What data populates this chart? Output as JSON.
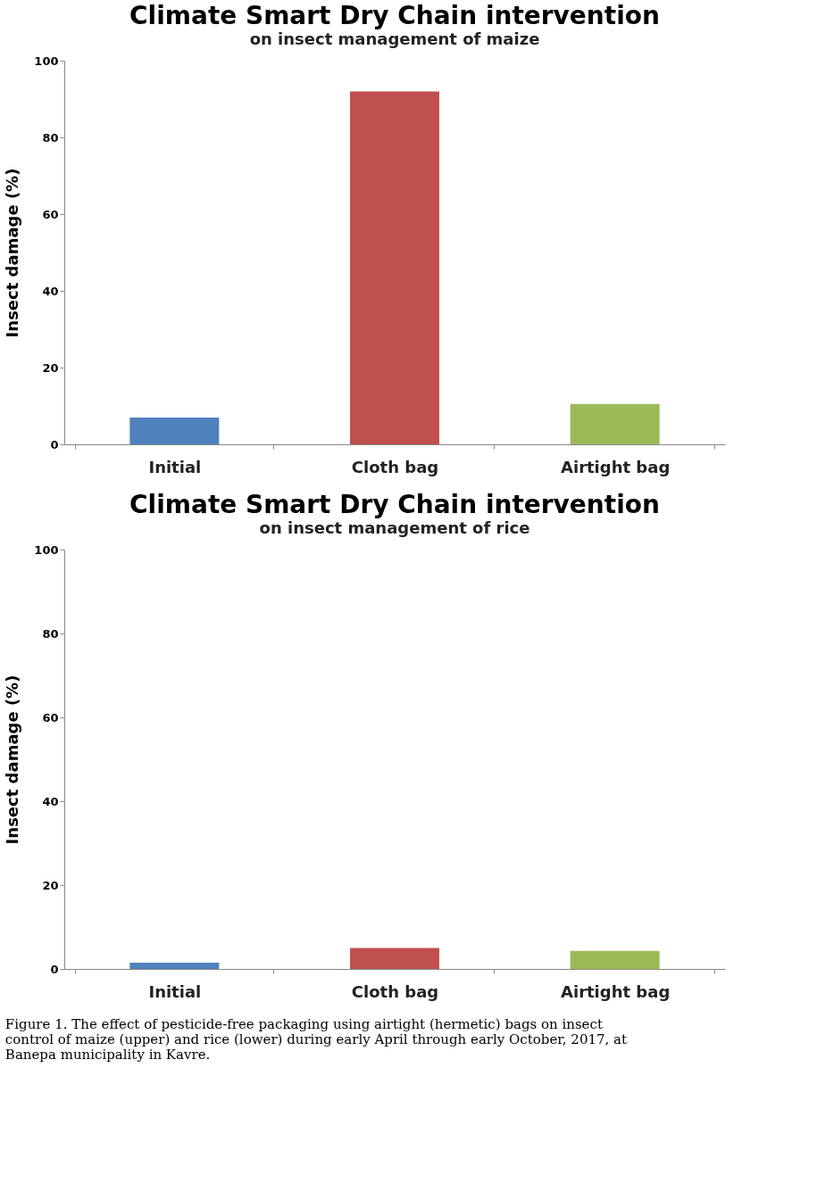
{
  "chart_data": [
    {
      "type": "bar",
      "title": "Climate Smart Dry Chain intervention",
      "subtitle": "on insect management of maize",
      "ylabel": "Insect damage (%)",
      "categories": [
        "Initial",
        "Cloth bag",
        "Airtight bag"
      ],
      "values": [
        7,
        92,
        10.5
      ],
      "colors": [
        "#4f81bd",
        "#c0504d",
        "#9bbb59"
      ],
      "ylim": [
        0,
        100
      ],
      "yticks": [
        0,
        20,
        40,
        60,
        80,
        100
      ],
      "grid": false
    },
    {
      "type": "bar",
      "title": "Climate Smart Dry Chain intervention",
      "subtitle": "on insect management of rice",
      "ylabel": "Insect damage (%)",
      "categories": [
        "Initial",
        "Cloth bag",
        "Airtight bag"
      ],
      "values": [
        1.5,
        5,
        4.3
      ],
      "colors": [
        "#4f81bd",
        "#c0504d",
        "#9bbb59"
      ],
      "ylim": [
        0,
        100
      ],
      "yticks": [
        0,
        20,
        40,
        60,
        80,
        100
      ],
      "grid": false,
      "annotations": [
        "Figure 1. The effect of pesticide-free packaging using airtight (hermetic) bags on insect control of maize (upper) and rice (lower) during early April through early October, 2017, at Banepa municipality in Kavre."
      ]
    }
  ]
}
